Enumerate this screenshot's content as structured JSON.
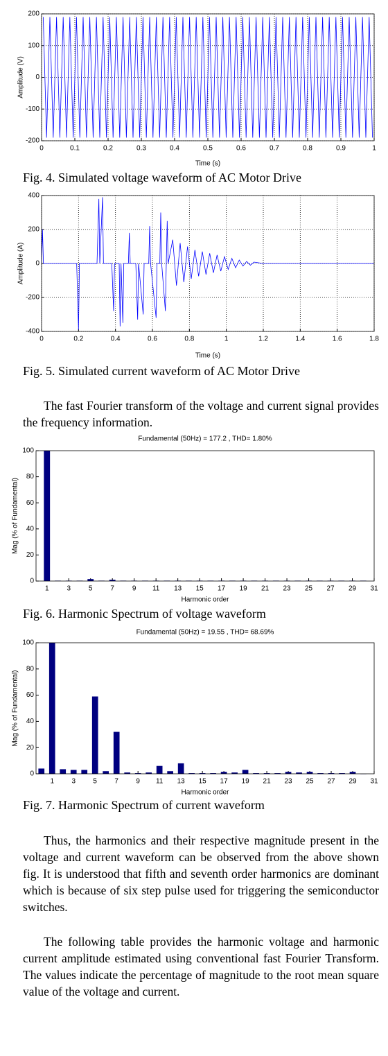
{
  "chart_data": [
    {
      "type": "line",
      "ylabel": "Amplitude (V)",
      "xlabel": "Time (s)",
      "caption": "Fig. 4. Simulated voltage waveform of AC Motor Drive",
      "color": "#0000ff",
      "grid": true,
      "xlim": [
        0,
        1
      ],
      "ylim": [
        -200,
        200
      ],
      "xticks": [
        0,
        0.1,
        0.2,
        0.3,
        0.4,
        0.5,
        0.6,
        0.7,
        0.8,
        0.9,
        1
      ],
      "yticks": [
        -200,
        -100,
        0,
        100,
        200
      ],
      "x": [
        0.005,
        0.015,
        0.025,
        0.035,
        0.045,
        0.055,
        0.065,
        0.075,
        0.085,
        0.095,
        0.105,
        0.115,
        0.125,
        0.135,
        0.145,
        0.155,
        0.165,
        0.175,
        0.185,
        0.195,
        0.205,
        0.215,
        0.225,
        0.235,
        0.245,
        0.255,
        0.265,
        0.275,
        0.285,
        0.295,
        0.305,
        0.315,
        0.325,
        0.335,
        0.345,
        0.355,
        0.365,
        0.375,
        0.385,
        0.395,
        0.405,
        0.415,
        0.425,
        0.435,
        0.445,
        0.455,
        0.465,
        0.475,
        0.485,
        0.495,
        0.505,
        0.515,
        0.525,
        0.535,
        0.545,
        0.555,
        0.565,
        0.575,
        0.585,
        0.595,
        0.605,
        0.615,
        0.625,
        0.635,
        0.645,
        0.655,
        0.665,
        0.675,
        0.685,
        0.695,
        0.705,
        0.715,
        0.725,
        0.735,
        0.745,
        0.755,
        0.765,
        0.775,
        0.785,
        0.795,
        0.805,
        0.815,
        0.825,
        0.835,
        0.845,
        0.855,
        0.865,
        0.875,
        0.885,
        0.895,
        0.905,
        0.915,
        0.925,
        0.935,
        0.945,
        0.955,
        0.965,
        0.975,
        0.985,
        0.995
      ],
      "values": [
        190,
        -190,
        190,
        -190,
        190,
        -190,
        190,
        -190,
        190,
        -190,
        190,
        -190,
        190,
        -190,
        190,
        -190,
        190,
        -190,
        190,
        -190,
        190,
        -190,
        190,
        -190,
        190,
        -190,
        190,
        -190,
        190,
        -190,
        190,
        -190,
        190,
        -190,
        190,
        -190,
        190,
        -190,
        190,
        -190,
        190,
        -190,
        190,
        -190,
        190,
        -190,
        190,
        -190,
        190,
        -190,
        190,
        -190,
        190,
        -190,
        190,
        -190,
        190,
        -190,
        190,
        -190,
        190,
        -190,
        190,
        -190,
        190,
        -190,
        190,
        -190,
        190,
        -190,
        190,
        -190,
        190,
        -190,
        190,
        -190,
        190,
        -190,
        190,
        -190,
        190,
        -190,
        190,
        -190,
        190,
        -190,
        190,
        -190,
        190,
        -190,
        190,
        -190,
        190,
        -190,
        190,
        -190,
        190,
        -190,
        190,
        -190
      ]
    },
    {
      "type": "line",
      "ylabel": "Amplitude (A)",
      "xlabel": "Time (s)",
      "caption": "Fig. 5. Simulated current waveform of AC Motor Drive",
      "color": "#0000ff",
      "grid": true,
      "xlim": [
        0,
        1.8
      ],
      "ylim": [
        -400,
        400
      ],
      "xticks": [
        0,
        0.2,
        0.4,
        0.6,
        0.8,
        1,
        1.2,
        1.4,
        1.6,
        1.8
      ],
      "yticks": [
        -400,
        -200,
        0,
        200,
        400
      ],
      "x": [
        0,
        0.005,
        0.01,
        0.19,
        0.2,
        0.205,
        0.3,
        0.31,
        0.315,
        0.33,
        0.335,
        0.38,
        0.39,
        0.395,
        0.42,
        0.425,
        0.43,
        0.44,
        0.445,
        0.47,
        0.475,
        0.48,
        0.51,
        0.52,
        0.525,
        0.55,
        0.555,
        0.58,
        0.585,
        0.59,
        0.62,
        0.625,
        0.64,
        0.645,
        0.65,
        0.67,
        0.675,
        0.68,
        0.685,
        0.71,
        0.73,
        0.75,
        0.77,
        0.79,
        0.81,
        0.83,
        0.85,
        0.87,
        0.89,
        0.91,
        0.93,
        0.95,
        0.97,
        0.99,
        1.01,
        1.03,
        1.05,
        1.07,
        1.09,
        1.11,
        1.13,
        1.15,
        1.2,
        1.8
      ],
      "values": [
        0,
        200,
        0,
        0,
        -390,
        0,
        0,
        380,
        0,
        390,
        0,
        0,
        -280,
        0,
        0,
        -370,
        0,
        -350,
        0,
        0,
        180,
        0,
        0,
        -330,
        0,
        -300,
        0,
        0,
        220,
        0,
        -320,
        0,
        0,
        300,
        0,
        -280,
        0,
        250,
        0,
        140,
        -130,
        120,
        -110,
        100,
        -90,
        80,
        -75,
        70,
        -65,
        60,
        -55,
        50,
        -45,
        40,
        -35,
        30,
        -25,
        20,
        -15,
        12,
        -10,
        8,
        0,
        0
      ]
    },
    {
      "type": "bar",
      "title": "Fundamental (50Hz) = 177.2 , THD= 1.80%",
      "ylabel": "Mag (% of Fundamental)",
      "xlabel": "Harmonic order",
      "caption": "Fig. 6. Harmonic Spectrum of voltage waveform",
      "color": "#000080",
      "grid": false,
      "xlim": [
        0,
        31
      ],
      "ylim": [
        0,
        100
      ],
      "xticks": [
        1,
        3,
        5,
        7,
        9,
        11,
        13,
        15,
        17,
        19,
        21,
        23,
        25,
        27,
        29,
        31
      ],
      "yticks": [
        0,
        20,
        40,
        60,
        80,
        100
      ],
      "x": [
        1,
        2,
        3,
        4,
        5,
        6,
        7,
        8,
        9,
        10,
        11,
        12,
        13,
        14,
        15,
        16,
        17,
        18,
        19,
        20,
        21,
        22,
        23,
        24,
        25,
        26,
        27,
        28,
        29,
        30
      ],
      "values": [
        100,
        0.3,
        0.3,
        0.3,
        1.5,
        0.3,
        1,
        0.3,
        0.3,
        0.3,
        0.3,
        0.3,
        0.3,
        0.3,
        0.3,
        0.3,
        0.3,
        0.3,
        0.3,
        0.3,
        0.3,
        0.3,
        0.3,
        0.3,
        0.3,
        0.3,
        0.3,
        0.3,
        0.3,
        0.3
      ]
    },
    {
      "type": "bar",
      "title": "Fundamental (50Hz) = 19.55 , THD= 68.69%",
      "ylabel": "Mag (% of Fundamental)",
      "xlabel": "Harmonic order",
      "caption": "Fig. 7. Harmonic Spectrum of current waveform",
      "color": "#000080",
      "grid": false,
      "xlim": [
        -0.5,
        31
      ],
      "ylim": [
        0,
        100
      ],
      "xticks": [
        1,
        3,
        5,
        7,
        9,
        11,
        13,
        15,
        17,
        19,
        21,
        23,
        25,
        27,
        29,
        31
      ],
      "yticks": [
        0,
        20,
        40,
        60,
        80,
        100
      ],
      "x": [
        0,
        1,
        2,
        3,
        4,
        5,
        6,
        7,
        8,
        9,
        10,
        11,
        12,
        13,
        14,
        15,
        16,
        17,
        18,
        19,
        20,
        21,
        22,
        23,
        24,
        25,
        26,
        27,
        28,
        29,
        30
      ],
      "values": [
        4,
        100,
        3.5,
        3,
        3,
        59,
        2,
        32,
        1,
        0.5,
        1,
        6,
        2,
        8,
        0.5,
        0.5,
        0.5,
        1.5,
        1,
        3,
        0.5,
        0.5,
        0.5,
        1.5,
        1,
        1.5,
        0.5,
        0.5,
        0.5,
        1.5,
        0
      ]
    }
  ],
  "paragraphs": [
    "The fast Fourier transform of the voltage and current signal provides the frequency information.",
    "Thus, the harmonics and their respective magnitude present in the voltage and current waveform can be observed from the above shown fig. It is understood that fifth and seventh order harmonics are dominant which is because of six step pulse used for triggering the semiconductor switches.",
    "The following table provides the harmonic voltage and harmonic current amplitude estimated using conventional fast Fourier Transform. The values indicate the percentage of magnitude to the root mean square value of the voltage and current."
  ]
}
